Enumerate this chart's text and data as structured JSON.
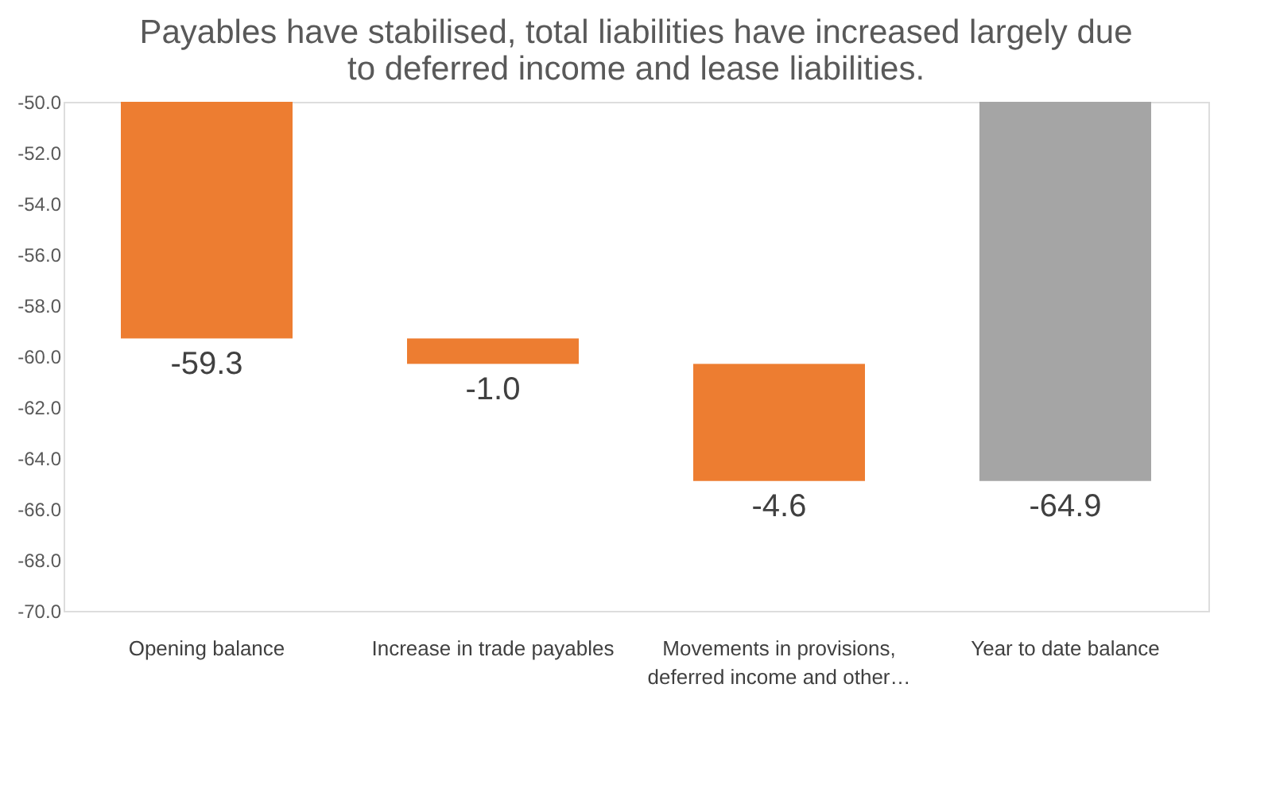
{
  "chart_data": {
    "type": "bar",
    "title": "Payables have stabilised, total liabilities have increased largely due to deferred income and lease liabilities.",
    "categories": [
      "Opening balance",
      "Increase in trade payables",
      "Movements in provisions, deferred income and other…",
      "Year to date balance"
    ],
    "values": [
      -59.3,
      -1.0,
      -4.6,
      -64.9
    ],
    "base": [
      null,
      -59.3,
      -60.3,
      null
    ],
    "colors": [
      "#ed7d31",
      "#ed7d31",
      "#ed7d31",
      "#a5a5a5"
    ],
    "ylim": [
      -70.0,
      -50.0
    ],
    "yticks": [
      {
        "value": -50,
        "label": "-50.0"
      },
      {
        "value": -52,
        "label": "-52.0"
      },
      {
        "value": -54,
        "label": "-54.0"
      },
      {
        "value": -56,
        "label": "-56.0"
      },
      {
        "value": -58,
        "label": "-58.0"
      },
      {
        "value": -60,
        "label": "-60.0"
      },
      {
        "value": -62,
        "label": "-62.0"
      },
      {
        "value": -64,
        "label": "-64.0"
      },
      {
        "value": -66,
        "label": "-66.0"
      },
      {
        "value": -68,
        "label": "-68.0"
      },
      {
        "value": -70,
        "label": "-70.0"
      }
    ],
    "value_labels": [
      "-59.3",
      "-1.0",
      "-4.6",
      "-64.9"
    ],
    "grid": false
  }
}
